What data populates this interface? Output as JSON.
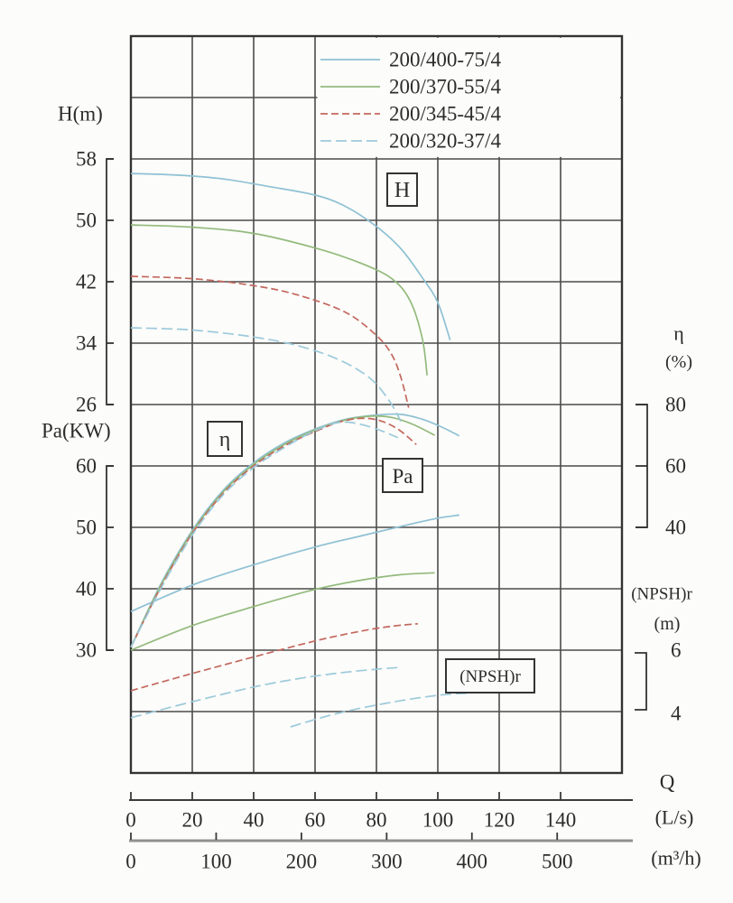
{
  "chart_data": {
    "type": "line",
    "legend": {
      "position": "top-right",
      "entries": [
        {
          "label": "200/400-75/4",
          "color": "#8fc1d4",
          "dash": "solid"
        },
        {
          "label": "200/370-55/4",
          "color": "#93ba7c",
          "dash": "solid"
        },
        {
          "label": "200/345-45/4",
          "color": "#c3685e",
          "dash": "dashed"
        },
        {
          "label": "200/320-37/4",
          "color": "#9ccadb",
          "dash": "long-dash"
        }
      ]
    },
    "axes": {
      "x": {
        "name": "Q",
        "primary_unit": "(L/s)",
        "primary_ticks": [
          0,
          20,
          40,
          60,
          80,
          100,
          120,
          140
        ],
        "primary_range": [
          0,
          160
        ],
        "secondary_unit": "(m³/h)",
        "secondary_ticks": [
          0,
          100,
          200,
          300,
          400,
          500
        ]
      },
      "H": {
        "label": "H(m)",
        "ticks": [
          58,
          50,
          42,
          34,
          26
        ],
        "range": [
          26,
          58
        ]
      },
      "Pa": {
        "label": "Pa(KW)",
        "ticks": [
          60,
          50,
          40,
          30
        ],
        "range": [
          30,
          60
        ]
      },
      "eta": {
        "label": "η",
        "unit": "(%)",
        "ticks": [
          80,
          60,
          40
        ],
        "range": [
          40,
          80
        ]
      },
      "npsh": {
        "label": "(NPSH)r",
        "unit": "(m)",
        "ticks": [
          6,
          4
        ],
        "range": [
          4,
          6
        ]
      }
    },
    "annotations": [
      {
        "id": "H",
        "text": "H"
      },
      {
        "id": "eta",
        "text": "η"
      },
      {
        "id": "Pa",
        "text": "Pa"
      },
      {
        "id": "npsh",
        "text": "(NPSH)r"
      }
    ],
    "grid": {
      "show": true
    },
    "series": [
      {
        "name": "200/400-75/4",
        "color": "#8fc1d4",
        "dash": "solid",
        "H_m": [
          [
            0,
            56.1
          ],
          [
            15,
            55.9
          ],
          [
            30,
            55.4
          ],
          [
            45,
            54.4
          ],
          [
            60,
            53.3
          ],
          [
            70,
            51.8
          ],
          [
            80,
            49.2
          ],
          [
            88,
            46.3
          ],
          [
            95,
            42.5
          ],
          [
            100,
            39.3
          ],
          [
            104,
            34.4
          ]
        ],
        "eta_pct": [
          [
            0,
            1
          ],
          [
            10,
            22
          ],
          [
            20,
            39
          ],
          [
            30,
            52
          ],
          [
            40,
            61
          ],
          [
            50,
            67.5
          ],
          [
            60,
            72
          ],
          [
            70,
            75.2
          ],
          [
            80,
            76.6
          ],
          [
            88,
            76.8
          ],
          [
            95,
            75.2
          ],
          [
            101,
            72.8
          ],
          [
            107,
            69.8
          ]
        ],
        "Pa_kW": [
          [
            0,
            36.3
          ],
          [
            20,
            40.6
          ],
          [
            40,
            43.9
          ],
          [
            60,
            46.8
          ],
          [
            75,
            48.6
          ],
          [
            90,
            50.4
          ],
          [
            100,
            51.5
          ],
          [
            107,
            52
          ]
        ]
      },
      {
        "name": "200/370-55/4",
        "color": "#93ba7c",
        "dash": "solid",
        "H_m": [
          [
            0,
            49.4
          ],
          [
            20,
            49.1
          ],
          [
            40,
            48.3
          ],
          [
            60,
            46.4
          ],
          [
            75,
            44.4
          ],
          [
            85,
            42.4
          ],
          [
            91,
            39.5
          ],
          [
            95,
            34.5
          ],
          [
            96.5,
            29.8
          ]
        ],
        "eta_pct": [
          [
            0,
            1
          ],
          [
            10,
            21.5
          ],
          [
            20,
            38.5
          ],
          [
            30,
            51.5
          ],
          [
            40,
            60.5
          ],
          [
            50,
            67
          ],
          [
            60,
            71.7
          ],
          [
            70,
            75
          ],
          [
            78,
            76.2
          ],
          [
            85,
            75.8
          ],
          [
            92,
            73.5
          ],
          [
            99,
            70
          ]
        ],
        "Pa_kW": [
          [
            0,
            30
          ],
          [
            20,
            34
          ],
          [
            40,
            37.1
          ],
          [
            60,
            39.9
          ],
          [
            75,
            41.4
          ],
          [
            88,
            42.3
          ],
          [
            99,
            42.6
          ]
        ]
      },
      {
        "name": "200/345-45/4",
        "color": "#c3685e",
        "dash": "dashed",
        "H_m": [
          [
            0,
            42.7
          ],
          [
            20,
            42.4
          ],
          [
            40,
            41.5
          ],
          [
            55,
            40.2
          ],
          [
            70,
            38
          ],
          [
            80,
            35
          ],
          [
            85,
            32.5
          ],
          [
            88,
            29.5
          ],
          [
            90.5,
            25.6
          ]
        ],
        "eta_pct": [
          [
            0,
            1
          ],
          [
            10,
            21
          ],
          [
            20,
            38
          ],
          [
            30,
            51
          ],
          [
            40,
            60
          ],
          [
            50,
            66.5
          ],
          [
            60,
            71.2
          ],
          [
            68,
            74.3
          ],
          [
            75,
            75.5
          ],
          [
            81,
            74.8
          ],
          [
            87,
            72
          ],
          [
            93,
            67
          ]
        ],
        "Pa_kW": [
          [
            0,
            23.4
          ],
          [
            20,
            26.2
          ],
          [
            40,
            28.9
          ],
          [
            60,
            31.5
          ],
          [
            75,
            33.1
          ],
          [
            85,
            33.9
          ],
          [
            93.5,
            34.3
          ]
        ]
      },
      {
        "name": "200/320-37/4",
        "color": "#9ccadb",
        "dash": "long-dash",
        "H_m": [
          [
            0,
            36
          ],
          [
            20,
            35.7
          ],
          [
            40,
            34.8
          ],
          [
            55,
            33.6
          ],
          [
            68,
            31.8
          ],
          [
            78,
            29.4
          ],
          [
            84,
            26.6
          ],
          [
            88,
            23.8
          ]
        ],
        "eta_pct": [
          [
            0,
            1
          ],
          [
            10,
            20.5
          ],
          [
            20,
            37.5
          ],
          [
            30,
            50.5
          ],
          [
            40,
            59.5
          ],
          [
            50,
            66
          ],
          [
            58,
            70.5
          ],
          [
            65,
            73.5
          ],
          [
            70,
            74.3
          ],
          [
            76,
            73.3
          ],
          [
            82,
            71.3
          ],
          [
            87,
            69.2
          ]
        ],
        "Pa_kW": [
          [
            0,
            19
          ],
          [
            20,
            21.6
          ],
          [
            40,
            24
          ],
          [
            55,
            25.4
          ],
          [
            68,
            26.3
          ],
          [
            80,
            26.9
          ],
          [
            88,
            27.2
          ]
        ]
      }
    ],
    "npsh_curve": {
      "color": "#9ccadb",
      "dash": "long-dash",
      "points_m": [
        [
          52,
          3.5
        ],
        [
          62,
          3.8
        ],
        [
          72,
          4.05
        ],
        [
          82,
          4.25
        ],
        [
          92,
          4.42
        ],
        [
          102,
          4.55
        ],
        [
          110,
          4.6
        ]
      ]
    }
  }
}
